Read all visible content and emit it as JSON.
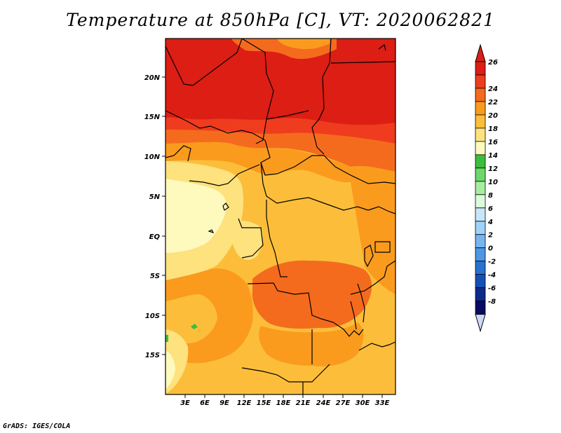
{
  "title": "Temperature at 850hPa [C], VT: 2020062821",
  "credit": "GrADS: IGES/COLA",
  "lat_labels": [
    "20N",
    "15N",
    "10N",
    "5N",
    "EQ",
    "5S",
    "10S",
    "15S"
  ],
  "lon_labels": [
    "3E",
    "6E",
    "9E",
    "12E",
    "15E",
    "18E",
    "21E",
    "24E",
    "27E",
    "30E",
    "33E"
  ],
  "colorbar": {
    "labels": [
      "26",
      "24",
      "22",
      "20",
      "18",
      "16",
      "14",
      "12",
      "10",
      "8",
      "6",
      "4",
      "2",
      "0",
      "-2",
      "-4",
      "-6",
      "-8"
    ],
    "colors": [
      "#dc1e14",
      "#f03c1e",
      "#f46b1e",
      "#fa9b1e",
      "#fcbe3a",
      "#fde27e",
      "#fefabe",
      "#3cbe3c",
      "#6cd86c",
      "#a8eca0",
      "#dcfadc",
      "#c8e6fa",
      "#a0d2fa",
      "#78b4f0",
      "#4c98e6",
      "#2872d2",
      "#1450b4",
      "#0c2a8c",
      "#080a64"
    ],
    "top_color": "#dc1e14",
    "bottom_color": "#d0d8f8"
  },
  "field_colors": {
    "c26": "#dc1e14",
    "c24": "#f03c1e",
    "c22": "#f46b1e",
    "c20": "#fa9b1e",
    "c18": "#fcbe3a",
    "c16": "#fde27e",
    "c14": "#fefabe",
    "c12": "#3cbe3c"
  }
}
